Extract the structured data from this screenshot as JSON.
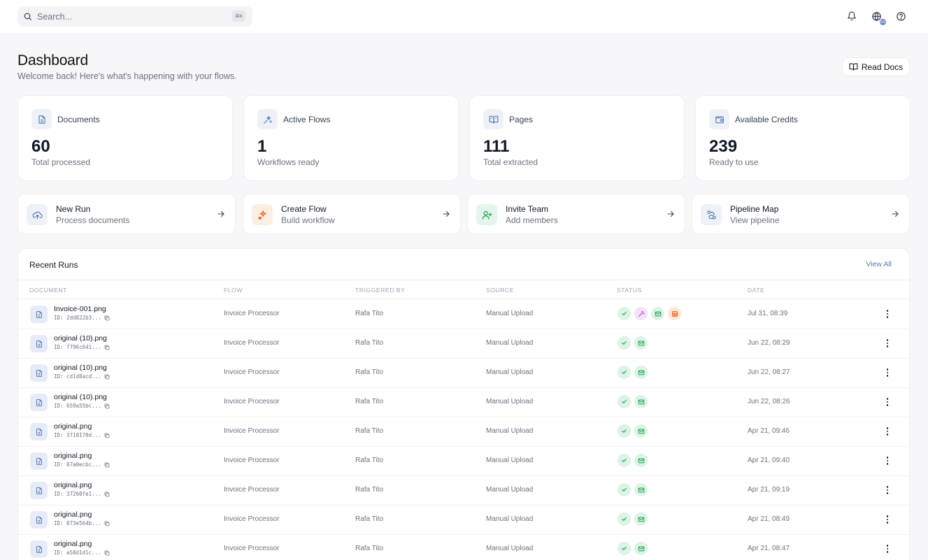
{
  "search": {
    "placeholder": "Search...",
    "shortcut": "⌘K"
  },
  "header_icons": {
    "notifications": "bell-icon",
    "language": "globe-icon",
    "language_badge": "EN",
    "help": "help-circle-icon"
  },
  "page": {
    "title": "Dashboard",
    "subtitle": "Welcome back! Here's what's happening with your flows.",
    "read_docs_label": "Read Docs"
  },
  "stats": [
    {
      "label": "Documents",
      "value": "60",
      "caption": "Total processed",
      "icon": "document-icon"
    },
    {
      "label": "Active Flows",
      "value": "1",
      "caption": "Workflows ready",
      "icon": "sparkles-icon"
    },
    {
      "label": "Pages",
      "value": "111",
      "caption": "Total extracted",
      "icon": "book-open-icon"
    },
    {
      "label": "Available Credits",
      "value": "239",
      "caption": "Ready to use",
      "icon": "wallet-icon"
    }
  ],
  "quick_actions": [
    {
      "title": "New Run",
      "subtitle": "Process documents",
      "icon": "upload-cloud-icon",
      "color": "#eef2f8"
    },
    {
      "title": "Create Flow",
      "subtitle": "Build workflow",
      "icon": "sparkles-icon",
      "color": "#fdeee3"
    },
    {
      "title": "Invite Team",
      "subtitle": "Add members",
      "icon": "user-plus-icon",
      "color": "#e4f5ec"
    },
    {
      "title": "Pipeline Map",
      "subtitle": "View pipeline",
      "icon": "route-icon",
      "color": "#eef2f8"
    }
  ],
  "recent_runs": {
    "title": "Recent Runs",
    "view_all_label": "View All",
    "columns": [
      "DOCUMENT",
      "FLOW",
      "TRIGGERED BY",
      "SOURCE",
      "STATUS",
      "DATE"
    ],
    "rows": [
      {
        "name": "Invoice-001.png",
        "id": "ID: 2dd822b3...",
        "flow": "Invoice Processor",
        "triggered_by": "Rafa Tito",
        "source": "Manual Upload",
        "status": [
          "check",
          "wand",
          "mail",
          "table"
        ],
        "date": "Jul 31, 08:39"
      },
      {
        "name": "original (10).png",
        "id": "ID: 7796c641...",
        "flow": "Invoice Processor",
        "triggered_by": "Rafa Tito",
        "source": "Manual Upload",
        "status": [
          "check",
          "mail"
        ],
        "date": "Jun 22, 08:29"
      },
      {
        "name": "original (10).png",
        "id": "ID: cd1d8acd...",
        "flow": "Invoice Processor",
        "triggered_by": "Rafa Tito",
        "source": "Manual Upload",
        "status": [
          "check",
          "mail"
        ],
        "date": "Jun 22, 08:27"
      },
      {
        "name": "original (10).png",
        "id": "ID: 659a55bc...",
        "flow": "Invoice Processor",
        "triggered_by": "Rafa Tito",
        "source": "Manual Upload",
        "status": [
          "check",
          "mail"
        ],
        "date": "Jun 22, 08:26"
      },
      {
        "name": "original.png",
        "id": "ID: 3718170d...",
        "flow": "Invoice Processor",
        "triggered_by": "Rafa Tito",
        "source": "Manual Upload",
        "status": [
          "check",
          "mail"
        ],
        "date": "Apr 21, 09:46"
      },
      {
        "name": "original.png",
        "id": "ID: 07a0ecbc...",
        "flow": "Invoice Processor",
        "triggered_by": "Rafa Tito",
        "source": "Manual Upload",
        "status": [
          "check",
          "mail"
        ],
        "date": "Apr 21, 09:40"
      },
      {
        "name": "original.png",
        "id": "ID: 37260fe1...",
        "flow": "Invoice Processor",
        "triggered_by": "Rafa Tito",
        "source": "Manual Upload",
        "status": [
          "check",
          "mail"
        ],
        "date": "Apr 21, 09:19"
      },
      {
        "name": "original.png",
        "id": "ID: 073e564b...",
        "flow": "Invoice Processor",
        "triggered_by": "Rafa Tito",
        "source": "Manual Upload",
        "status": [
          "check",
          "mail"
        ],
        "date": "Apr 21, 08:49"
      },
      {
        "name": "original.png",
        "id": "ID: a58d1d1c...",
        "flow": "Invoice Processor",
        "triggered_by": "Rafa Tito",
        "source": "Manual Upload",
        "status": [
          "check",
          "mail"
        ],
        "date": "Apr 21, 08:47"
      }
    ]
  },
  "colors": {
    "accent": "#5b7bb5",
    "success": "#16a34a",
    "purple": "#c026d3",
    "orange": "#ea580c",
    "background": "#f7f7f9"
  }
}
